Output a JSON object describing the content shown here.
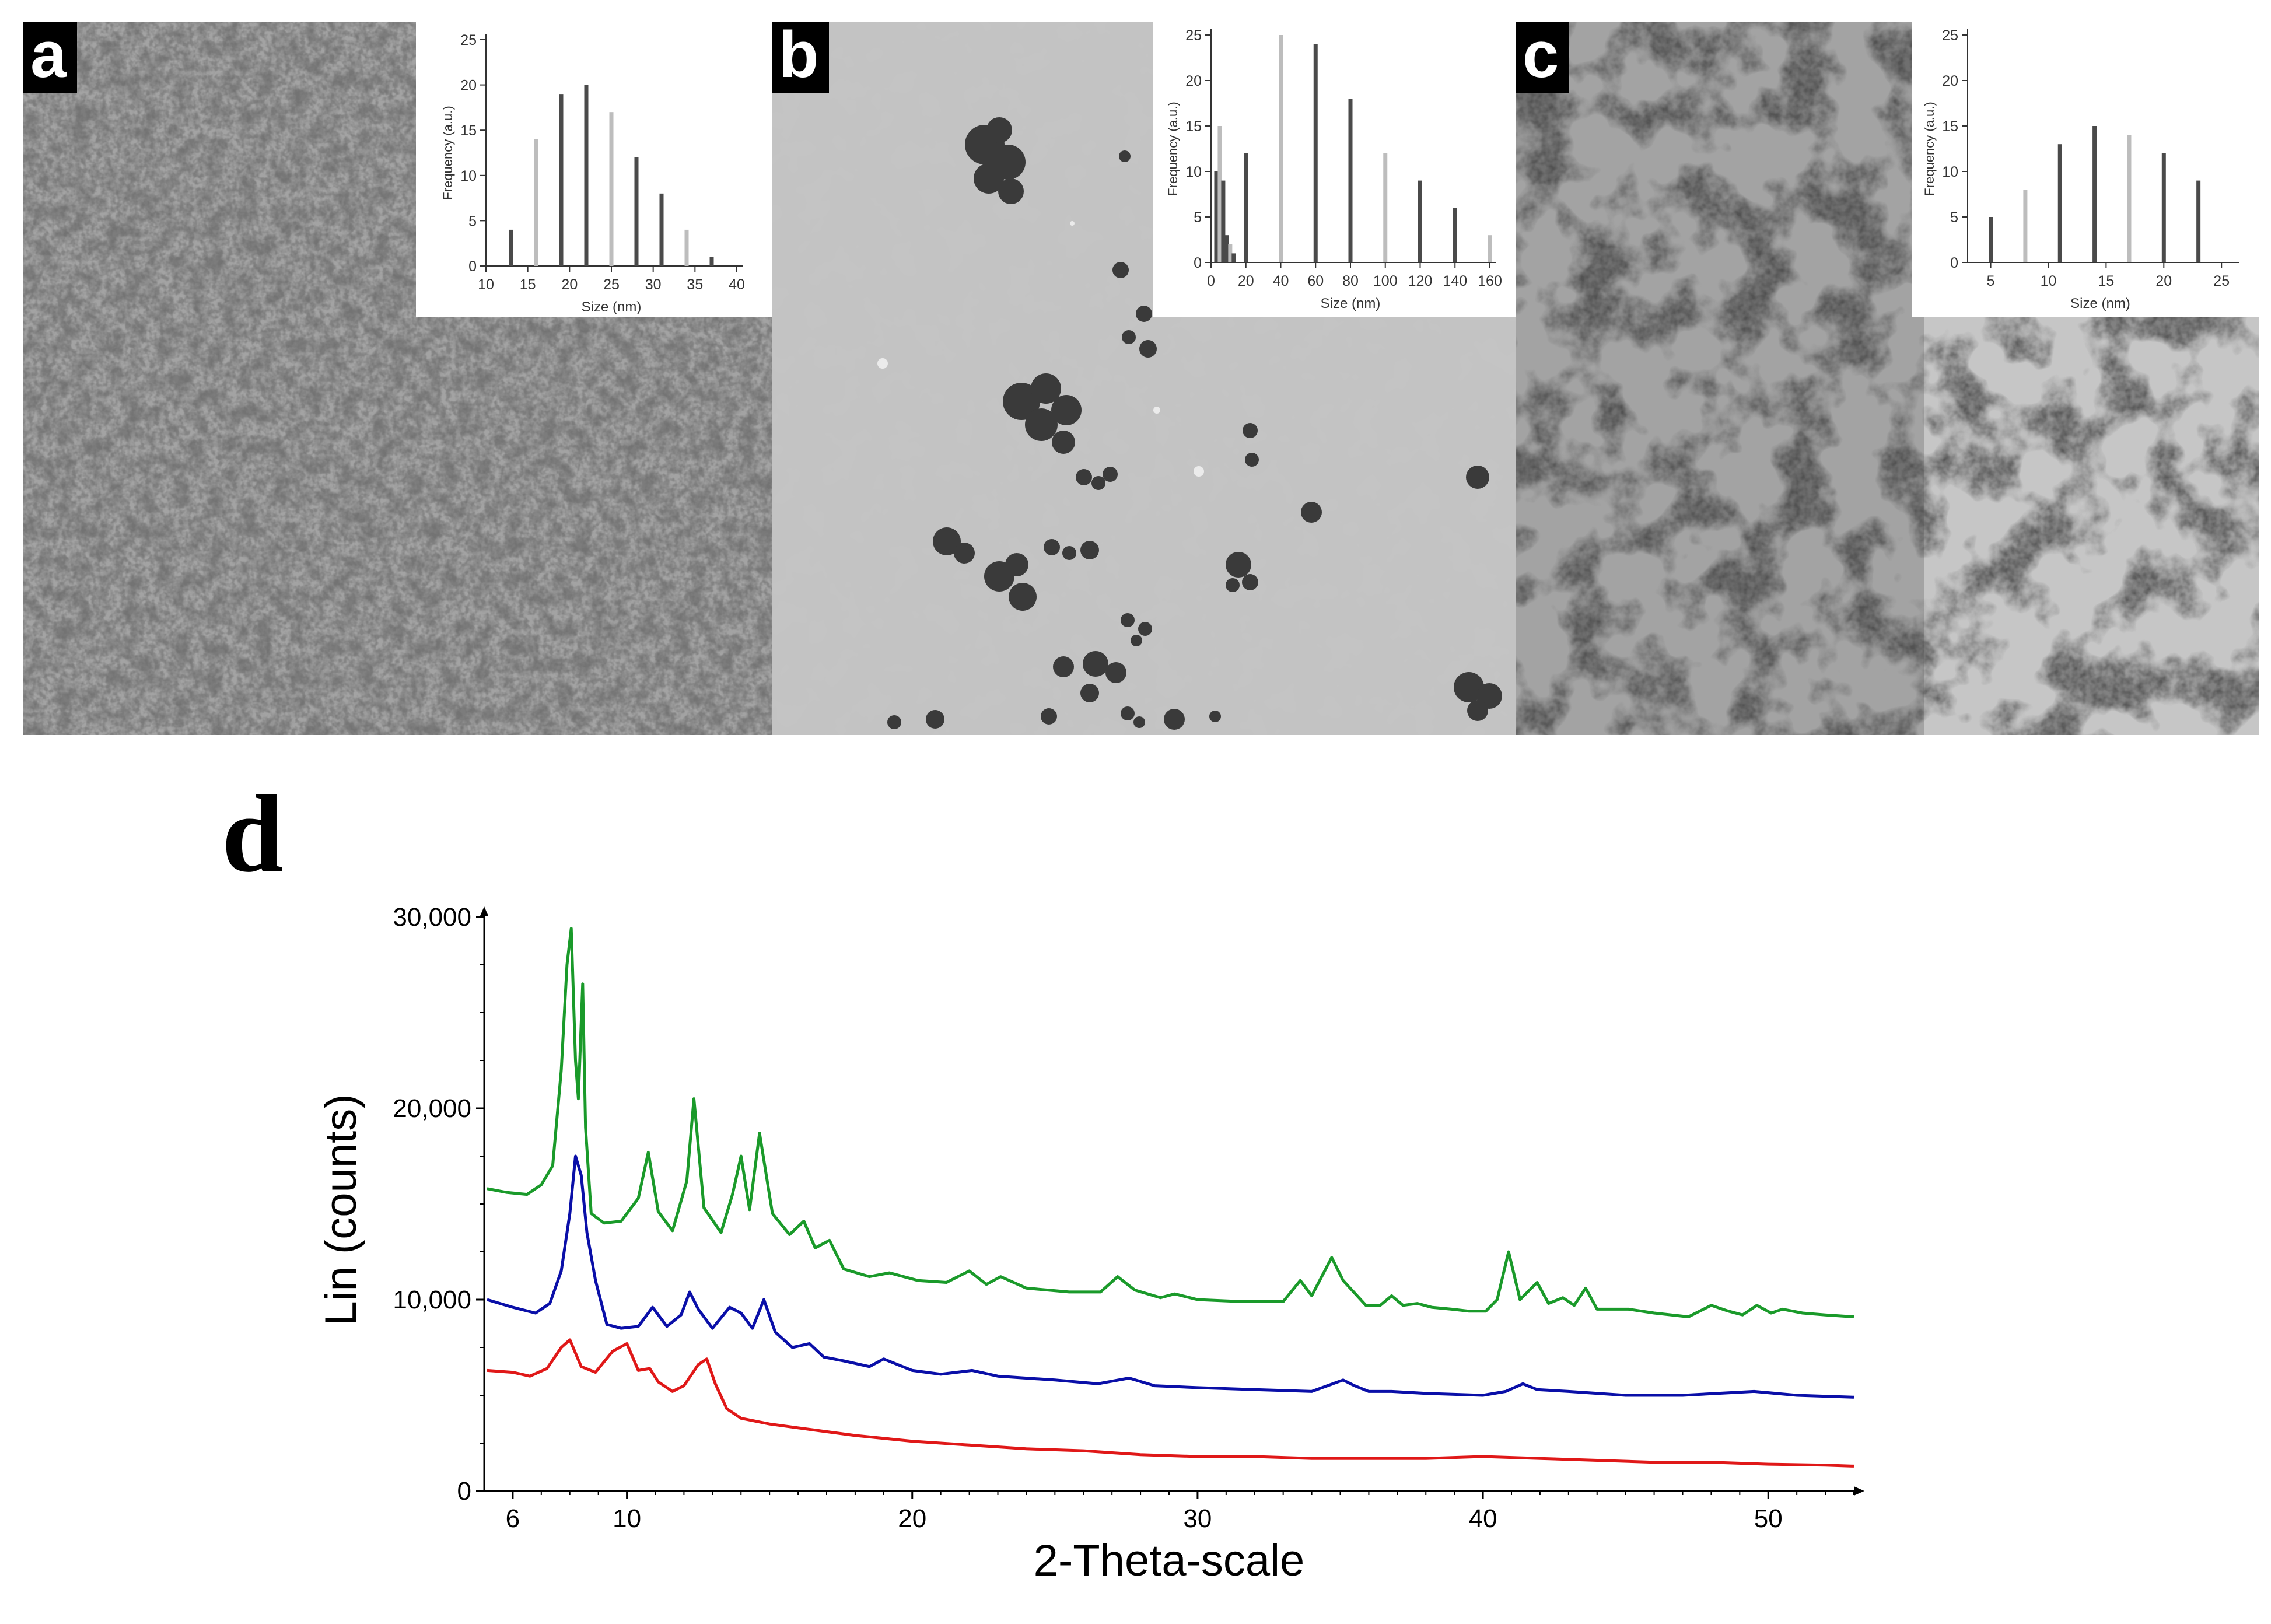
{
  "panels": {
    "a": {
      "letter": "a"
    },
    "b": {
      "letter": "b"
    },
    "c": {
      "letter": "c"
    },
    "d": {
      "letter": "d"
    }
  },
  "colors": {
    "green": "#1a9a2a",
    "blue": "#0a0fa8",
    "red": "#e01818",
    "bar_dark": "#4a4a4a",
    "bar_light": "#bdbdbd"
  },
  "chart_data": [
    {
      "id": "a",
      "type": "bar",
      "title": "",
      "xlabel": "Size (nm)",
      "ylabel": "Frequency (a.u.)",
      "xlim": [
        10,
        40
      ],
      "ylim": [
        0,
        25
      ],
      "xticks": [
        10,
        15,
        20,
        25,
        30,
        35,
        40
      ],
      "yticks": [
        0,
        5,
        10,
        15,
        20,
        25
      ],
      "x": [
        13,
        16,
        19,
        22,
        25,
        28,
        31,
        34,
        37
      ],
      "values": [
        4,
        14,
        19,
        20,
        17,
        12,
        8,
        4,
        1
      ]
    },
    {
      "id": "b",
      "type": "bar",
      "title": "",
      "xlabel": "Size (nm)",
      "ylabel": "Frequency (a.u.)",
      "xlim": [
        0,
        160
      ],
      "ylim": [
        0,
        25
      ],
      "xticks": [
        0,
        20,
        40,
        60,
        80,
        100,
        120,
        140,
        160
      ],
      "yticks": [
        0,
        5,
        10,
        15,
        20,
        25
      ],
      "x": [
        3,
        5,
        7,
        9,
        11,
        13,
        20,
        40,
        60,
        80,
        100,
        120,
        140,
        160
      ],
      "values": [
        10,
        15,
        9,
        3,
        2,
        1,
        12,
        25,
        24,
        18,
        12,
        9,
        6,
        3
      ]
    },
    {
      "id": "c",
      "type": "bar",
      "title": "",
      "xlabel": "Size (nm)",
      "ylabel": "Frequency (a.u.)",
      "xlim": [
        3,
        26
      ],
      "ylim": [
        0,
        25
      ],
      "xticks": [
        5,
        10,
        15,
        20,
        25
      ],
      "yticks": [
        0,
        5,
        10,
        15,
        20,
        25
      ],
      "x": [
        5,
        8,
        11,
        14,
        17,
        20,
        23
      ],
      "values": [
        5,
        8,
        13,
        15,
        14,
        12,
        9
      ]
    },
    {
      "id": "d",
      "type": "line",
      "title": "",
      "xlabel": "2-Theta-scale",
      "ylabel": "Lin (counts)",
      "xlim": [
        5,
        53
      ],
      "ylim": [
        0,
        30000
      ],
      "xtick_labels": [
        "6",
        "10",
        "20",
        "30",
        "40",
        "50"
      ],
      "xticks": [
        6,
        10,
        20,
        30,
        40,
        50
      ],
      "ytick_labels": [
        "0",
        "10,000",
        "20,000",
        "30,000"
      ],
      "yticks": [
        0,
        10000,
        20000,
        30000
      ],
      "series": [
        {
          "name": "green",
          "color": "#1a9a2a",
          "x": [
            5.1,
            5.8,
            6.5,
            7.0,
            7.4,
            7.7,
            7.9,
            8.05,
            8.2,
            8.3,
            8.45,
            8.55,
            8.75,
            9.2,
            9.8,
            10.4,
            10.75,
            11.1,
            11.6,
            12.1,
            12.35,
            12.7,
            13.3,
            13.7,
            14.0,
            14.3,
            14.65,
            15.1,
            15.7,
            16.2,
            16.6,
            17.1,
            17.6,
            18.5,
            19.2,
            20.2,
            21.2,
            22.0,
            22.6,
            23.1,
            24.0,
            25.5,
            26.6,
            27.2,
            27.8,
            28.7,
            29.2,
            30.0,
            31.5,
            33.0,
            33.6,
            34.0,
            34.7,
            35.1,
            35.9,
            36.4,
            36.8,
            37.2,
            37.7,
            38.2,
            38.9,
            39.5,
            40.1,
            40.5,
            40.9,
            41.3,
            41.9,
            42.3,
            42.8,
            43.2,
            43.6,
            44.0,
            45.1,
            46.0,
            47.2,
            48.0,
            48.6,
            49.1,
            49.6,
            50.1,
            50.5,
            51.2,
            52.0,
            53.0
          ],
          "y": [
            15800,
            15600,
            15500,
            16000,
            17000,
            22000,
            27500,
            29400,
            22500,
            20500,
            26500,
            19000,
            14500,
            14000,
            14100,
            15300,
            17700,
            14600,
            13600,
            16200,
            20500,
            14800,
            13500,
            15500,
            17500,
            14700,
            18700,
            14500,
            13400,
            14100,
            12700,
            13100,
            11600,
            11200,
            11400,
            11000,
            10900,
            11500,
            10800,
            11200,
            10600,
            10400,
            10400,
            11200,
            10500,
            10100,
            10300,
            10000,
            9900,
            9900,
            11000,
            10200,
            12200,
            11000,
            9700,
            9700,
            10200,
            9700,
            9800,
            9600,
            9500,
            9400,
            9400,
            10000,
            12500,
            10000,
            10900,
            9800,
            10100,
            9700,
            10600,
            9500,
            9500,
            9300,
            9100,
            9700,
            9400,
            9200,
            9700,
            9300,
            9500,
            9300,
            9200,
            9100
          ]
        },
        {
          "name": "blue",
          "color": "#0a0fa8",
          "x": [
            5.1,
            6.0,
            6.8,
            7.3,
            7.7,
            8.0,
            8.2,
            8.4,
            8.6,
            8.9,
            9.3,
            9.8,
            10.4,
            10.9,
            11.4,
            11.9,
            12.2,
            12.5,
            13.0,
            13.6,
            14.0,
            14.4,
            14.8,
            15.2,
            15.8,
            16.4,
            16.9,
            17.6,
            18.5,
            19.0,
            20.0,
            21.0,
            22.1,
            23.0,
            25.0,
            26.5,
            27.6,
            28.5,
            30.0,
            32.0,
            34.0,
            35.1,
            35.5,
            36.0,
            36.8,
            38.0,
            40.0,
            40.8,
            41.4,
            41.9,
            43.0,
            45.0,
            47.0,
            49.5,
            51.0,
            53.0
          ],
          "y": [
            10000,
            9600,
            9300,
            9800,
            11500,
            14500,
            17500,
            16500,
            13500,
            11000,
            8700,
            8500,
            8600,
            9600,
            8600,
            9200,
            10400,
            9500,
            8500,
            9600,
            9300,
            8500,
            10000,
            8300,
            7500,
            7700,
            7000,
            6800,
            6500,
            6900,
            6300,
            6100,
            6300,
            6000,
            5800,
            5600,
            5900,
            5500,
            5400,
            5300,
            5200,
            5800,
            5500,
            5200,
            5200,
            5100,
            5000,
            5200,
            5600,
            5300,
            5200,
            5000,
            5000,
            5200,
            5000,
            4900
          ]
        },
        {
          "name": "red",
          "color": "#e01818",
          "x": [
            5.1,
            6.0,
            6.6,
            7.2,
            7.7,
            8.0,
            8.4,
            8.9,
            9.5,
            10.0,
            10.4,
            10.8,
            11.1,
            11.6,
            12.0,
            12.5,
            12.8,
            13.1,
            13.5,
            14.0,
            15.0,
            16.0,
            18.0,
            20.0,
            22.0,
            24.0,
            26.0,
            28.0,
            30.0,
            32.0,
            34.0,
            36.0,
            38.0,
            40.0,
            42.0,
            44.0,
            46.0,
            48.0,
            50.0,
            52.0,
            53.0
          ],
          "y": [
            6300,
            6200,
            6000,
            6400,
            7500,
            7900,
            6500,
            6200,
            7300,
            7700,
            6300,
            6400,
            5700,
            5200,
            5500,
            6600,
            6900,
            5600,
            4300,
            3800,
            3500,
            3300,
            2900,
            2600,
            2400,
            2200,
            2100,
            1900,
            1800,
            1800,
            1700,
            1700,
            1700,
            1800,
            1700,
            1600,
            1500,
            1500,
            1400,
            1350,
            1300
          ]
        }
      ]
    }
  ]
}
